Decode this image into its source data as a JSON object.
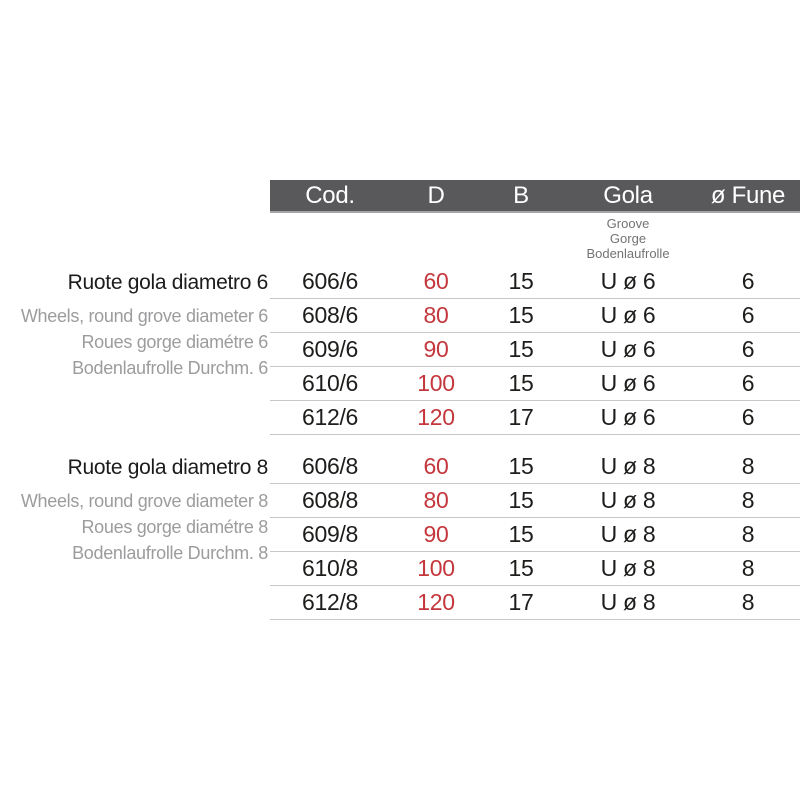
{
  "header": {
    "columns": [
      "Cod.",
      "D",
      "B",
      "Gola",
      "ø Fune"
    ],
    "gola_subtitles": [
      "Groove",
      "Gorge",
      "Bodenlaufrolle"
    ]
  },
  "colors": {
    "header_bg": "#59595b",
    "header_text": "#ffffff",
    "accent_red": "#c4373c",
    "row_line": "#c8c8c9",
    "muted_gray": "#9c9c9e"
  },
  "groups": [
    {
      "title": "Ruote gola diametro 6",
      "subtitles": [
        "Wheels, round grove diameter 6",
        "Roues gorge diamétre 6",
        "Bodenlaufrolle Durchm. 6"
      ],
      "rows": [
        {
          "cod": "606/6",
          "d": "60",
          "b": "15",
          "gola": "U ø 6",
          "fune": "6"
        },
        {
          "cod": "608/6",
          "d": "80",
          "b": "15",
          "gola": "U ø 6",
          "fune": "6"
        },
        {
          "cod": "609/6",
          "d": "90",
          "b": "15",
          "gola": "U ø 6",
          "fune": "6"
        },
        {
          "cod": "610/6",
          "d": "100",
          "b": "15",
          "gola": "U ø 6",
          "fune": "6"
        },
        {
          "cod": "612/6",
          "d": "120",
          "b": "17",
          "gola": "U ø 6",
          "fune": "6"
        }
      ]
    },
    {
      "title": "Ruote gola diametro 8",
      "subtitles": [
        "Wheels, round grove diameter 8",
        "Roues gorge diamétre 8",
        "Bodenlaufrolle Durchm. 8"
      ],
      "rows": [
        {
          "cod": "606/8",
          "d": "60",
          "b": "15",
          "gola": "U ø 8",
          "fune": "8"
        },
        {
          "cod": "608/8",
          "d": "80",
          "b": "15",
          "gola": "U ø 8",
          "fune": "8"
        },
        {
          "cod": "609/8",
          "d": "90",
          "b": "15",
          "gola": "U ø 8",
          "fune": "8"
        },
        {
          "cod": "610/8",
          "d": "100",
          "b": "15",
          "gola": "U ø 8",
          "fune": "8"
        },
        {
          "cod": "612/8",
          "d": "120",
          "b": "17",
          "gola": "U ø 8",
          "fune": "8"
        }
      ]
    }
  ]
}
